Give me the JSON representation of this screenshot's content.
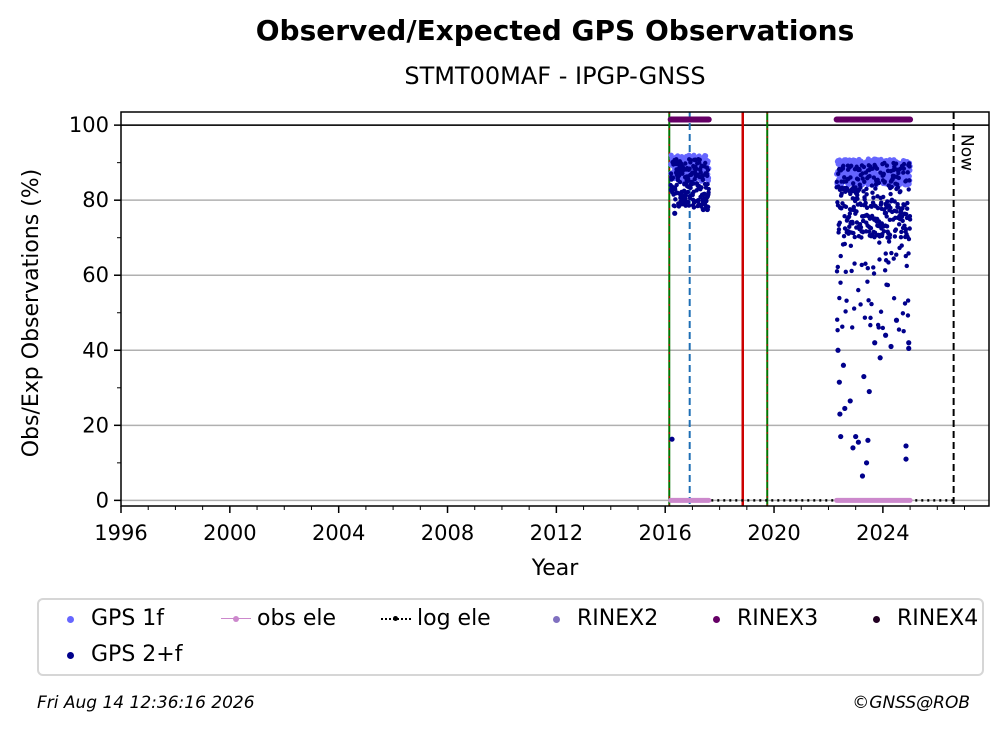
{
  "title": "Observed/Expected GPS Observations",
  "subtitle": "STMT00MAF - IPGP-GNSS",
  "footer": {
    "timestamp": "Fri Aug 14 12:36:16 2026",
    "credit": "©GNSS@ROB"
  },
  "chart_data": {
    "type": "scatter",
    "xlabel": "Year",
    "ylabel": "Obs/Exp Observations (%)",
    "xlim": [
      1996,
      2027.9
    ],
    "ylim": [
      -1.5,
      103.5
    ],
    "x_ticks": [
      1996,
      2000,
      2004,
      2008,
      2012,
      2016,
      2020,
      2024
    ],
    "y_ticks": [
      0,
      20,
      40,
      60,
      80,
      100
    ],
    "grid": "horizontal",
    "legend_position": "bottom",
    "colors": {
      "gps_1f": "#6666ff",
      "gps_2f": "#00008b",
      "obs_ele": "#cc88cc",
      "log_ele": "#000000",
      "rinex2": "#8070c0",
      "rinex3": "#660066",
      "rinex4": "#220022",
      "event_green": "#007700",
      "event_red": "#cc0000",
      "event_blue": "#1f6fb5",
      "now_line": "#000000"
    },
    "legend": [
      {
        "key": "gps_1f",
        "label": "GPS 1f",
        "style": "dot"
      },
      {
        "key": "obs_ele",
        "label": "obs ele",
        "style": "line-dot"
      },
      {
        "key": "log_ele",
        "label": "log ele",
        "style": "dotted-line"
      },
      {
        "key": "rinex2",
        "label": "RINEX2",
        "style": "dot"
      },
      {
        "key": "rinex3",
        "label": "RINEX3",
        "style": "dot"
      },
      {
        "key": "rinex4",
        "label": "RINEX4",
        "style": "dot"
      },
      {
        "key": "gps_2f",
        "label": "GPS 2+f",
        "style": "dot"
      }
    ],
    "events": {
      "green_dashed": [
        2016.15,
        2019.75
      ],
      "red_solid": [
        2018.85
      ],
      "blue_dashed": [
        2016.9
      ],
      "now": 2026.6,
      "now_label": "Now"
    },
    "segments": [
      {
        "start": 2016.2,
        "end": 2017.6,
        "gps_1f_typical": [
          85,
          92
        ],
        "gps_2f_typical": [
          78,
          91
        ],
        "gps_2f_outliers": [
          [
            2016.25,
            16.3
          ],
          [
            2016.35,
            76.5
          ],
          [
            2016.6,
            79
          ],
          [
            2017.4,
            77.5
          ],
          [
            2017.55,
            77.5
          ]
        ],
        "rinex3_at": 101.5,
        "obs_ele_at": 0
      },
      {
        "start": 2022.3,
        "end": 2025.0,
        "gps_1f_typical": [
          84,
          91
        ],
        "gps_2f_typical": [
          70,
          90
        ],
        "gps_2f_outliers": [
          [
            2022.35,
            40
          ],
          [
            2022.4,
            31.5
          ],
          [
            2022.42,
            23
          ],
          [
            2022.45,
            17
          ],
          [
            2022.55,
            36
          ],
          [
            2022.6,
            24.5
          ],
          [
            2022.8,
            26.5
          ],
          [
            2022.9,
            14
          ],
          [
            2023.0,
            17
          ],
          [
            2023.1,
            15.5
          ],
          [
            2023.25,
            6.5
          ],
          [
            2023.4,
            10
          ],
          [
            2023.3,
            33
          ],
          [
            2023.5,
            29
          ],
          [
            2023.45,
            16
          ],
          [
            2023.7,
            42
          ],
          [
            2023.9,
            38
          ],
          [
            2024.1,
            44
          ],
          [
            2024.3,
            41
          ],
          [
            2024.5,
            48
          ],
          [
            2024.85,
            14.5
          ],
          [
            2024.85,
            11
          ],
          [
            2024.95,
            40.5
          ],
          [
            2024.95,
            42
          ]
        ],
        "rinex3_at": 101.5,
        "obs_ele_at": 0
      }
    ],
    "log_ele": {
      "x": [
        2016.15,
        2026.6
      ],
      "y": 0
    }
  }
}
